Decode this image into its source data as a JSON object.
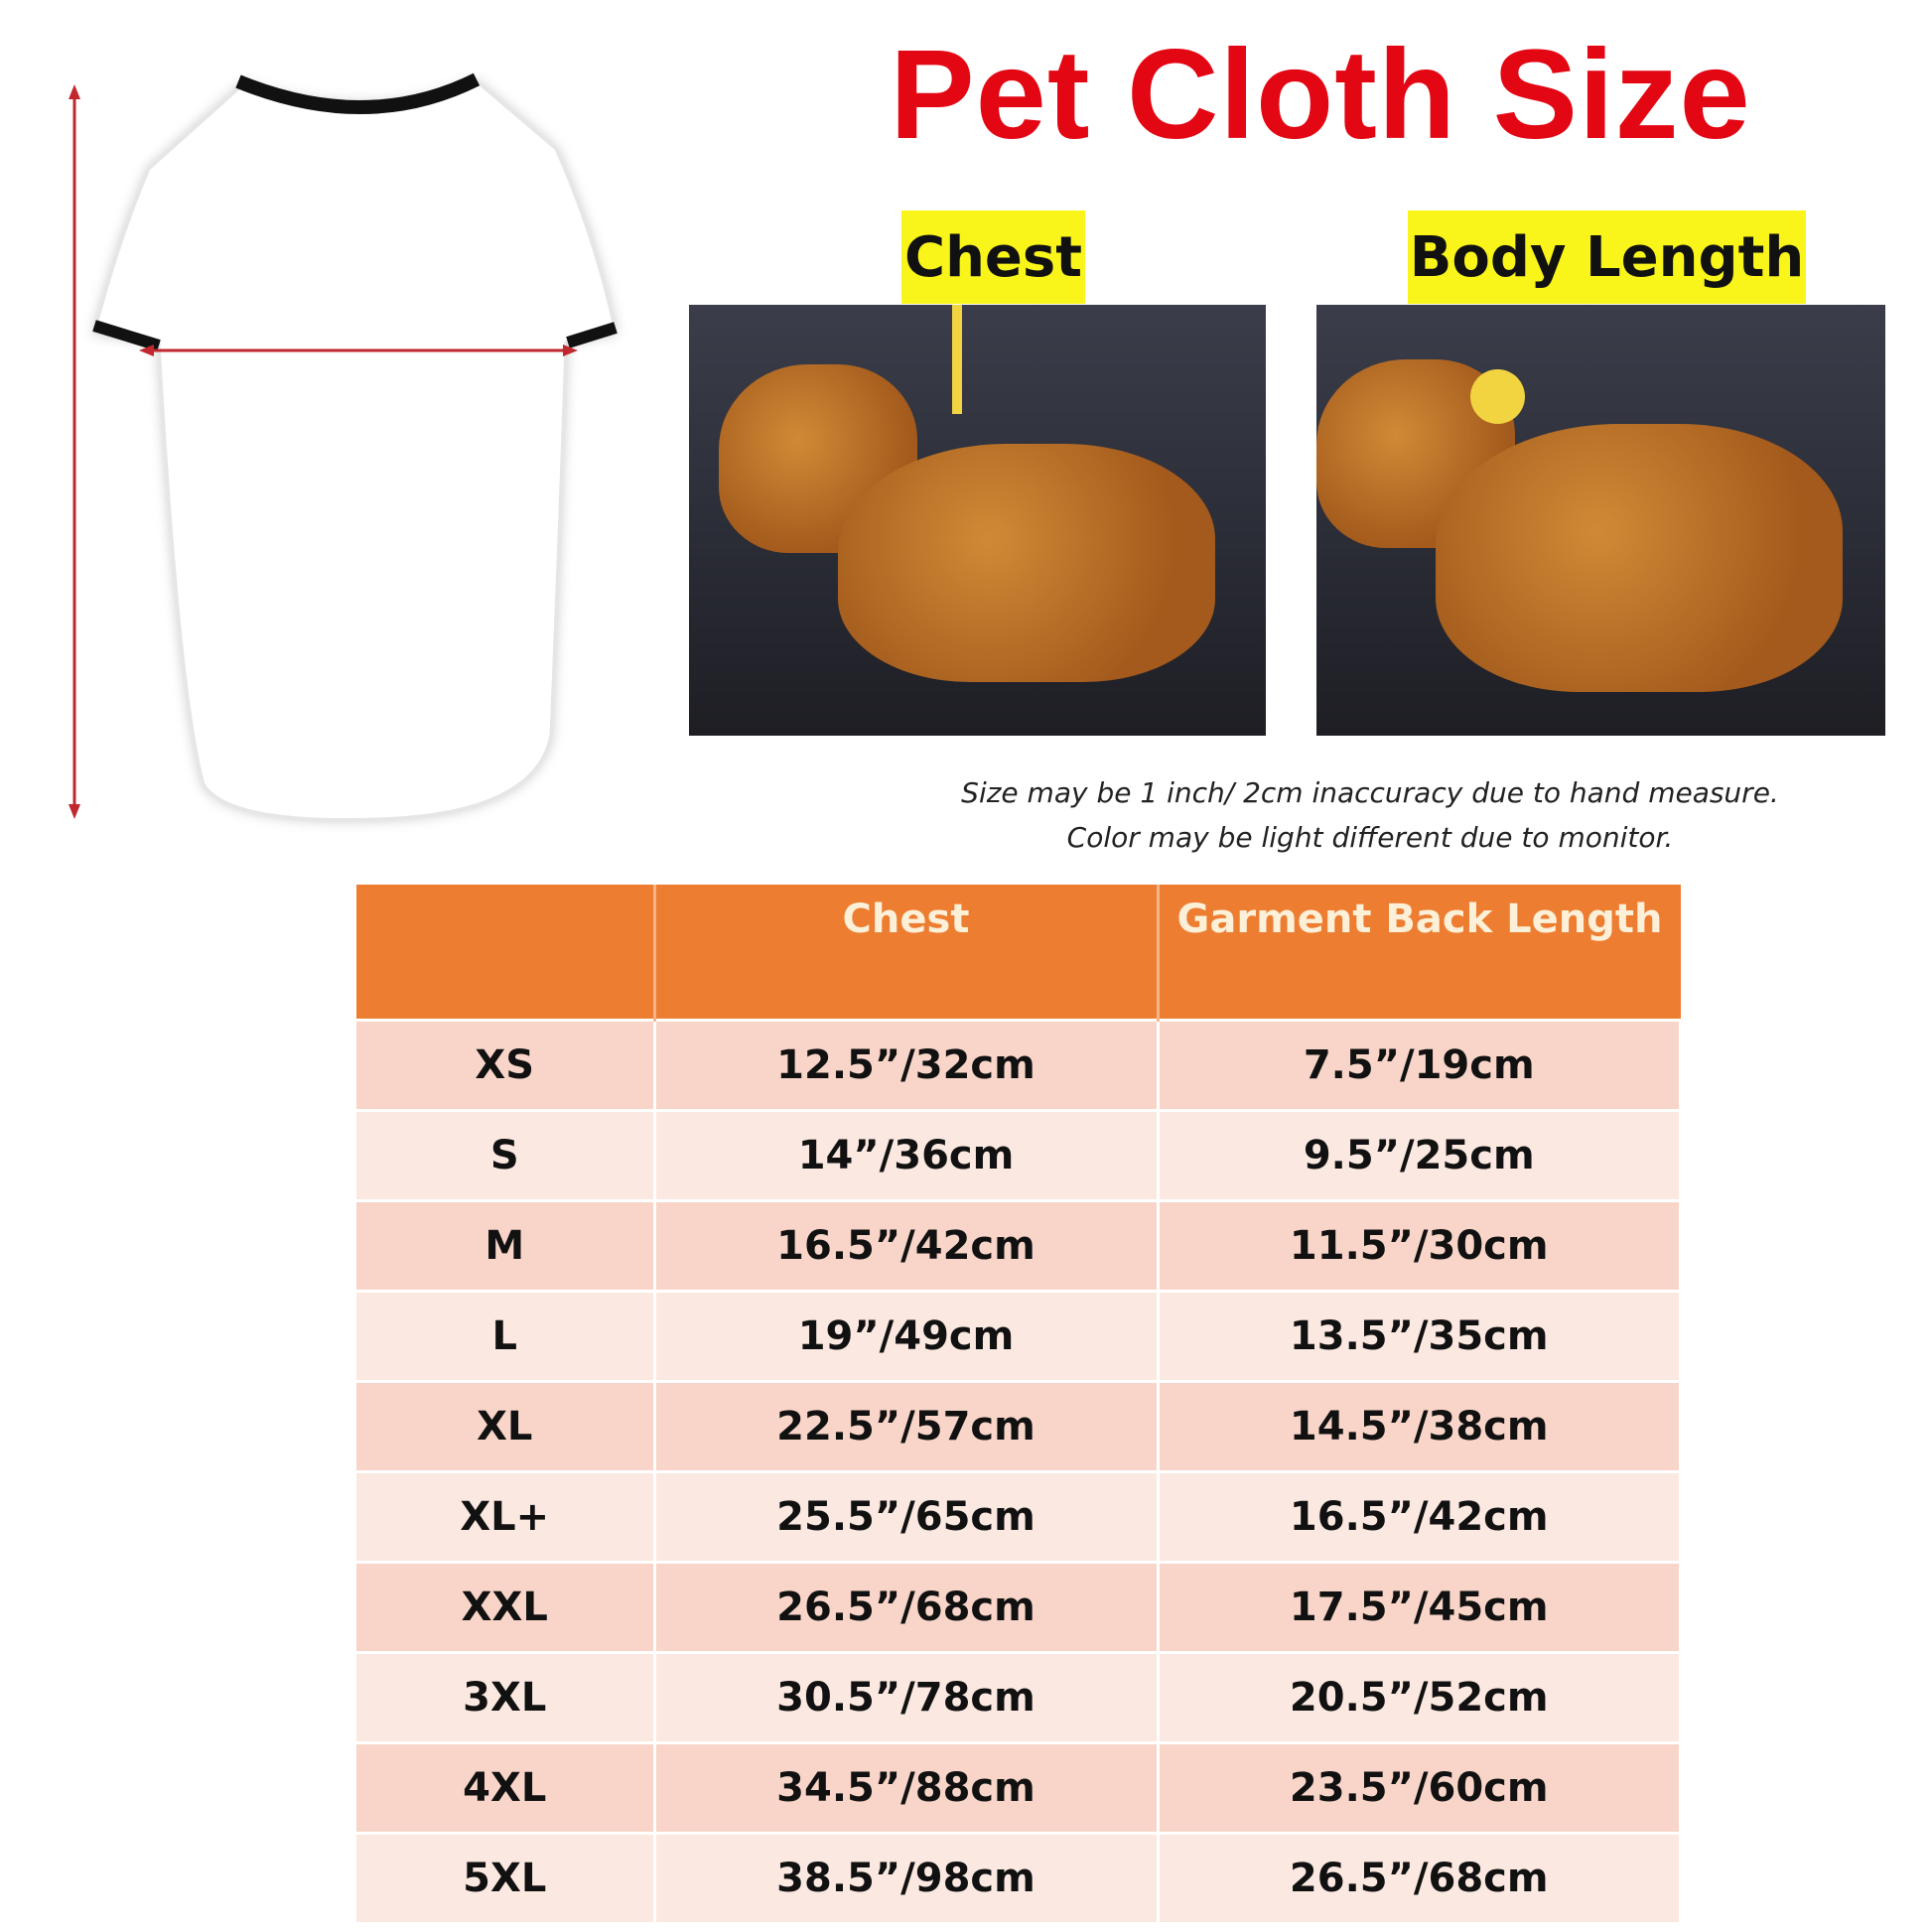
{
  "title": "Pet Cloth Size",
  "labels": {
    "chest": "Chest",
    "body_length": "Body Length"
  },
  "notes": [
    "Size may be 1 inch/ 2cm inaccuracy due to hand measure.",
    "Color may be light different due to monitor."
  ],
  "table": {
    "headers": [
      "",
      "Chest",
      "Garment Back Length"
    ],
    "rows": [
      [
        "XS",
        "12.5”/32cm",
        "7.5”/19cm"
      ],
      [
        "S",
        "14”/36cm",
        "9.5”/25cm"
      ],
      [
        "M",
        "16.5”/42cm",
        "11.5”/30cm"
      ],
      [
        "L",
        "19”/49cm",
        "13.5”/35cm"
      ],
      [
        "XL",
        "22.5”/57cm",
        "14.5”/38cm"
      ],
      [
        "XL+",
        "25.5”/65cm",
        "16.5”/42cm"
      ],
      [
        "XXL",
        "26.5”/68cm",
        "17.5”/45cm"
      ],
      [
        "3XL",
        "30.5”/78cm",
        "20.5”/52cm"
      ],
      [
        "4XL",
        "34.5”/88cm",
        "23.5”/60cm"
      ],
      [
        "5XL",
        "38.5”/98cm",
        "26.5”/68cm"
      ]
    ]
  },
  "colors": {
    "title": "#e30613",
    "header": "#ed7d31",
    "label_bg": "#f9f51a",
    "arrow": "#c0282d"
  }
}
